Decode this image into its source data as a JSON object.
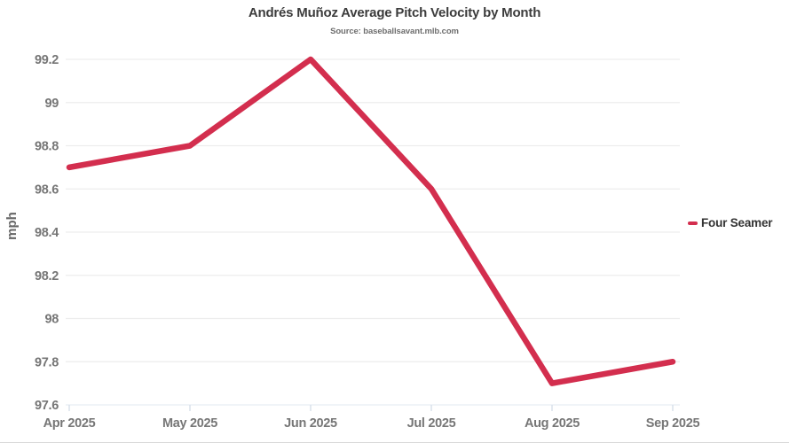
{
  "page": {
    "title": "Andrés Muñoz Average Pitch Velocity by Month",
    "subtitle": "Source: baseballsavant.mlb.com"
  },
  "chart_data": {
    "type": "line",
    "title": "Andrés Muñoz Average Pitch Velocity by Month",
    "subtitle": "Source: baseballsavant.mlb.com",
    "categories": [
      "Apr 2025",
      "May 2025",
      "Jun 2025",
      "Jul 2025",
      "Aug 2025",
      "Sep 2025"
    ],
    "series": [
      {
        "name": "Four Seamer",
        "color": "#d32e4e",
        "values": [
          98.7,
          98.8,
          99.2,
          98.6,
          97.7,
          97.8
        ]
      }
    ],
    "xlabel": "",
    "ylabel": "mph",
    "ylim": [
      97.6,
      99.2
    ],
    "ytick_step": 0.2,
    "grid": "horizontal",
    "legend_position": "right",
    "colors": {
      "gridline": "#ededed",
      "baseline": "#e7edf4",
      "tick": "#d4dde8",
      "axis_label": "#767676",
      "ylabel_text": "#666666"
    }
  }
}
